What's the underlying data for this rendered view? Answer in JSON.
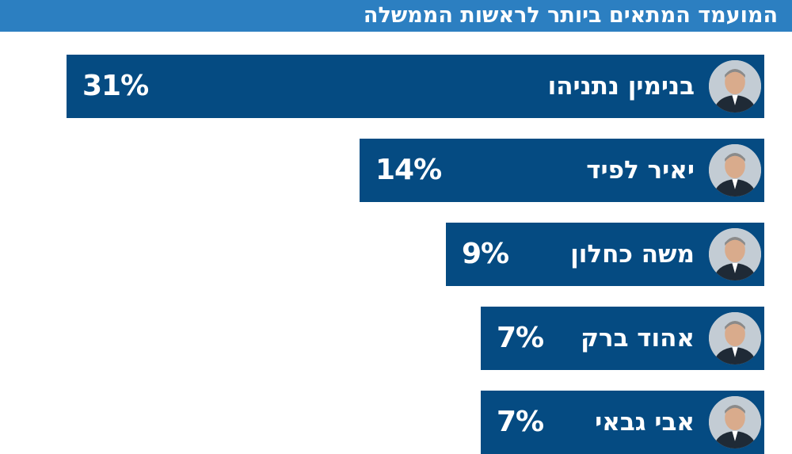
{
  "chart_data": {
    "type": "bar",
    "orientation": "horizontal",
    "title": "המועמד המתאים ביותר לראשות הממשלה",
    "categories": [
      "בנימין נתניהו",
      "יאיר לפיד",
      "משה כחלון",
      "אהוד ברק",
      "אבי גבאי"
    ],
    "values": [
      31,
      14,
      9,
      7,
      7
    ],
    "value_labels": [
      "31%",
      "14%",
      "9%",
      "7%",
      "7%"
    ],
    "unit": "%",
    "xlim": [
      0,
      31
    ],
    "grid": false,
    "legend": "none",
    "colors": {
      "bar": "#054b82",
      "title_bar": "#2c7fc1",
      "text_on_bar": "#ffffff"
    },
    "icons": [
      "portrait-icon",
      "portrait-icon",
      "portrait-icon",
      "portrait-icon",
      "portrait-icon"
    ]
  }
}
